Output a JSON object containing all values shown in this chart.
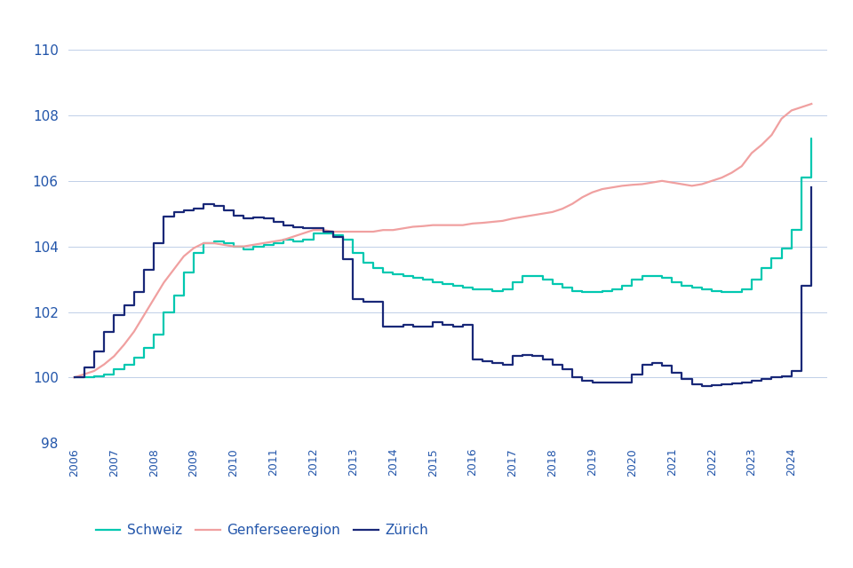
{
  "background_color": "#ffffff",
  "grid_color": "#c0cfe8",
  "text_color": "#2255aa",
  "line_schweiz_color": "#00c8b0",
  "line_genfer_color": "#f0a0a0",
  "line_zurich_color": "#192878",
  "legend_labels": [
    "Schweiz",
    "Genferseeregion",
    "Zürich"
  ],
  "ylim": [
    98,
    111
  ],
  "yticks": [
    98,
    100,
    102,
    104,
    106,
    108,
    110
  ],
  "xlim_min": 2005.85,
  "xlim_max": 2024.9,
  "schweiz_x": [
    2006.0,
    2006.25,
    2006.5,
    2006.75,
    2007.0,
    2007.25,
    2007.5,
    2007.75,
    2008.0,
    2008.25,
    2008.5,
    2008.75,
    2009.0,
    2009.25,
    2009.5,
    2009.75,
    2010.0,
    2010.25,
    2010.5,
    2010.75,
    2011.0,
    2011.25,
    2011.5,
    2011.75,
    2012.0,
    2012.25,
    2012.5,
    2012.75,
    2013.0,
    2013.25,
    2013.5,
    2013.75,
    2014.0,
    2014.25,
    2014.5,
    2014.75,
    2015.0,
    2015.25,
    2015.5,
    2015.75,
    2016.0,
    2016.25,
    2016.5,
    2016.75,
    2017.0,
    2017.25,
    2017.5,
    2017.75,
    2018.0,
    2018.25,
    2018.5,
    2018.75,
    2019.0,
    2019.25,
    2019.5,
    2019.75,
    2020.0,
    2020.25,
    2020.5,
    2020.75,
    2021.0,
    2021.25,
    2021.5,
    2021.75,
    2022.0,
    2022.25,
    2022.5,
    2022.75,
    2023.0,
    2023.25,
    2023.5,
    2023.75,
    2024.0,
    2024.25,
    2024.5
  ],
  "schweiz_y": [
    100.0,
    100.0,
    100.05,
    100.1,
    100.25,
    100.4,
    100.6,
    100.9,
    101.3,
    102.0,
    102.5,
    103.2,
    103.8,
    104.1,
    104.15,
    104.1,
    104.0,
    103.9,
    104.0,
    104.05,
    104.1,
    104.2,
    104.15,
    104.2,
    104.4,
    104.4,
    104.35,
    104.2,
    103.8,
    103.5,
    103.35,
    103.2,
    103.15,
    103.1,
    103.05,
    103.0,
    102.9,
    102.85,
    102.8,
    102.75,
    102.7,
    102.7,
    102.65,
    102.7,
    102.9,
    103.1,
    103.1,
    103.0,
    102.85,
    102.75,
    102.65,
    102.6,
    102.6,
    102.65,
    102.7,
    102.8,
    103.0,
    103.1,
    103.1,
    103.05,
    102.9,
    102.8,
    102.75,
    102.7,
    102.65,
    102.6,
    102.6,
    102.7,
    103.0,
    103.35,
    103.65,
    103.95,
    104.5,
    106.1,
    107.3
  ],
  "genfer_x": [
    2006.0,
    2006.25,
    2006.5,
    2006.75,
    2007.0,
    2007.25,
    2007.5,
    2007.75,
    2008.0,
    2008.25,
    2008.5,
    2008.75,
    2009.0,
    2009.25,
    2009.5,
    2009.75,
    2010.0,
    2010.25,
    2010.5,
    2010.75,
    2011.0,
    2011.25,
    2011.5,
    2011.75,
    2012.0,
    2012.25,
    2012.5,
    2012.75,
    2013.0,
    2013.25,
    2013.5,
    2013.75,
    2014.0,
    2014.25,
    2014.5,
    2014.75,
    2015.0,
    2015.25,
    2015.5,
    2015.75,
    2016.0,
    2016.25,
    2016.5,
    2016.75,
    2017.0,
    2017.25,
    2017.5,
    2017.75,
    2018.0,
    2018.25,
    2018.5,
    2018.75,
    2019.0,
    2019.25,
    2019.5,
    2019.75,
    2020.0,
    2020.25,
    2020.5,
    2020.75,
    2021.0,
    2021.25,
    2021.5,
    2021.75,
    2022.0,
    2022.25,
    2022.5,
    2022.75,
    2023.0,
    2023.25,
    2023.5,
    2023.75,
    2024.0,
    2024.25,
    2024.5
  ],
  "genfer_y": [
    100.0,
    100.1,
    100.2,
    100.4,
    100.65,
    101.0,
    101.4,
    101.9,
    102.4,
    102.9,
    103.3,
    103.7,
    103.95,
    104.1,
    104.1,
    104.05,
    104.0,
    104.0,
    104.05,
    104.1,
    104.15,
    104.2,
    104.3,
    104.4,
    104.5,
    104.5,
    104.45,
    104.45,
    104.45,
    104.45,
    104.45,
    104.5,
    104.5,
    104.55,
    104.6,
    104.62,
    104.65,
    104.65,
    104.65,
    104.65,
    104.7,
    104.72,
    104.75,
    104.78,
    104.85,
    104.9,
    104.95,
    105.0,
    105.05,
    105.15,
    105.3,
    105.5,
    105.65,
    105.75,
    105.8,
    105.85,
    105.88,
    105.9,
    105.95,
    106.0,
    105.95,
    105.9,
    105.85,
    105.9,
    106.0,
    106.1,
    106.25,
    106.45,
    106.85,
    107.1,
    107.4,
    107.9,
    108.15,
    108.25,
    108.35
  ],
  "zurich_x": [
    2006.0,
    2006.25,
    2006.5,
    2006.75,
    2007.0,
    2007.25,
    2007.5,
    2007.75,
    2008.0,
    2008.25,
    2008.5,
    2008.75,
    2009.0,
    2009.25,
    2009.5,
    2009.75,
    2010.0,
    2010.25,
    2010.5,
    2010.75,
    2011.0,
    2011.25,
    2011.5,
    2011.75,
    2012.0,
    2012.25,
    2012.5,
    2012.75,
    2013.0,
    2013.25,
    2013.5,
    2013.75,
    2014.0,
    2014.25,
    2014.5,
    2014.75,
    2015.0,
    2015.25,
    2015.5,
    2015.75,
    2016.0,
    2016.25,
    2016.5,
    2016.75,
    2017.0,
    2017.25,
    2017.5,
    2017.75,
    2018.0,
    2018.25,
    2018.5,
    2018.75,
    2019.0,
    2019.25,
    2019.5,
    2019.75,
    2020.0,
    2020.25,
    2020.5,
    2020.75,
    2021.0,
    2021.25,
    2021.5,
    2021.75,
    2022.0,
    2022.25,
    2022.5,
    2022.75,
    2023.0,
    2023.25,
    2023.5,
    2023.75,
    2024.0,
    2024.25,
    2024.5
  ],
  "zurich_y": [
    100.0,
    100.3,
    100.8,
    101.4,
    101.9,
    102.2,
    102.6,
    103.3,
    104.1,
    104.9,
    105.05,
    105.1,
    105.15,
    105.3,
    105.25,
    105.1,
    104.95,
    104.85,
    104.88,
    104.85,
    104.75,
    104.65,
    104.6,
    104.55,
    104.55,
    104.45,
    104.3,
    103.6,
    102.4,
    102.3,
    102.3,
    101.55,
    101.55,
    101.6,
    101.55,
    101.55,
    101.7,
    101.6,
    101.55,
    101.6,
    100.55,
    100.5,
    100.45,
    100.4,
    100.65,
    100.7,
    100.65,
    100.55,
    100.4,
    100.25,
    100.0,
    99.9,
    99.85,
    99.85,
    99.85,
    99.85,
    100.1,
    100.4,
    100.45,
    100.35,
    100.15,
    99.95,
    99.8,
    99.75,
    99.77,
    99.8,
    99.82,
    99.85,
    99.9,
    99.95,
    100.0,
    100.05,
    100.2,
    102.8,
    105.8
  ]
}
